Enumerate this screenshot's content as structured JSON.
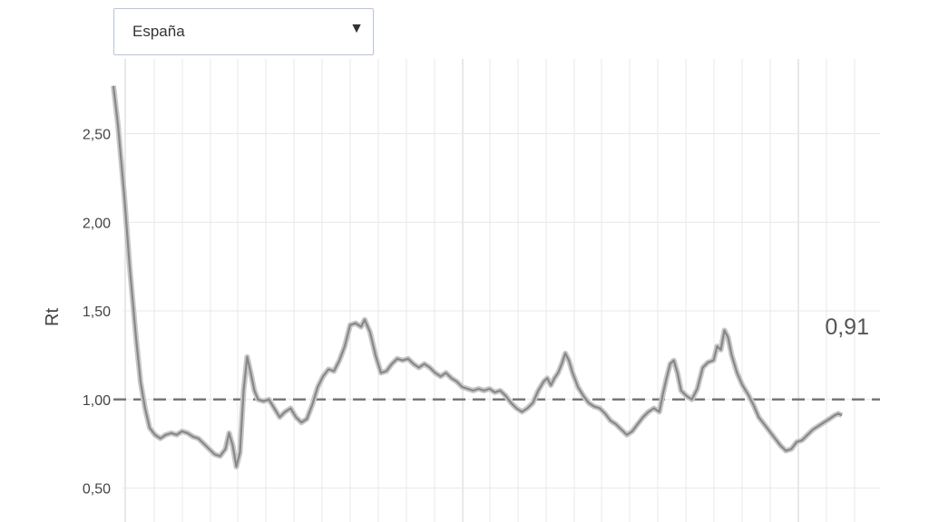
{
  "selector": {
    "selected": "España",
    "arrow": "▼",
    "icon": "triangle-down-icon"
  },
  "chart_data": {
    "type": "line",
    "ylabel": "Rt",
    "ylim": [
      0.35,
      2.8
    ],
    "xlim": [
      0,
      1000
    ],
    "yticks": [
      0.5,
      1.0,
      1.5,
      2.0,
      2.5
    ],
    "ytick_labels": [
      "0,50",
      "1,00",
      "1,50",
      "2,00",
      "2,50"
    ],
    "grid": true,
    "reference_line": {
      "y": 1.0,
      "style": "dashed"
    },
    "end_label": "0,91",
    "colors": {
      "line": "#888888",
      "band": "#c8c8c8",
      "grid": "#e8e8e8",
      "reference": "#777777"
    },
    "series": [
      {
        "values": [
          [
            0,
            2.77
          ],
          [
            5,
            2.55
          ],
          [
            12,
            2.15
          ],
          [
            18,
            1.75
          ],
          [
            25,
            1.35
          ],
          [
            30,
            1.1
          ],
          [
            35,
            0.95
          ],
          [
            40,
            0.84
          ],
          [
            46,
            0.8
          ],
          [
            52,
            0.78
          ],
          [
            58,
            0.8
          ],
          [
            64,
            0.81
          ],
          [
            70,
            0.8
          ],
          [
            76,
            0.82
          ],
          [
            82,
            0.81
          ],
          [
            88,
            0.79
          ],
          [
            94,
            0.78
          ],
          [
            100,
            0.75
          ],
          [
            106,
            0.72
          ],
          [
            112,
            0.69
          ],
          [
            118,
            0.68
          ],
          [
            124,
            0.72
          ],
          [
            128,
            0.81
          ],
          [
            132,
            0.74
          ],
          [
            136,
            0.62
          ],
          [
            140,
            0.7
          ],
          [
            144,
            1.05
          ],
          [
            148,
            1.24
          ],
          [
            152,
            1.15
          ],
          [
            156,
            1.05
          ],
          [
            160,
            1.0
          ],
          [
            166,
            0.99
          ],
          [
            172,
            1.0
          ],
          [
            178,
            0.95
          ],
          [
            184,
            0.9
          ],
          [
            190,
            0.93
          ],
          [
            196,
            0.95
          ],
          [
            202,
            0.9
          ],
          [
            208,
            0.87
          ],
          [
            214,
            0.89
          ],
          [
            220,
            0.97
          ],
          [
            226,
            1.07
          ],
          [
            232,
            1.13
          ],
          [
            238,
            1.17
          ],
          [
            244,
            1.16
          ],
          [
            250,
            1.22
          ],
          [
            256,
            1.3
          ],
          [
            262,
            1.42
          ],
          [
            268,
            1.43
          ],
          [
            274,
            1.41
          ],
          [
            278,
            1.45
          ],
          [
            284,
            1.38
          ],
          [
            290,
            1.25
          ],
          [
            296,
            1.15
          ],
          [
            302,
            1.16
          ],
          [
            308,
            1.2
          ],
          [
            314,
            1.23
          ],
          [
            320,
            1.22
          ],
          [
            326,
            1.23
          ],
          [
            332,
            1.2
          ],
          [
            338,
            1.18
          ],
          [
            344,
            1.2
          ],
          [
            350,
            1.18
          ],
          [
            356,
            1.15
          ],
          [
            362,
            1.13
          ],
          [
            368,
            1.15
          ],
          [
            374,
            1.12
          ],
          [
            380,
            1.1
          ],
          [
            386,
            1.07
          ],
          [
            392,
            1.06
          ],
          [
            398,
            1.05
          ],
          [
            404,
            1.06
          ],
          [
            410,
            1.05
          ],
          [
            416,
            1.06
          ],
          [
            422,
            1.04
          ],
          [
            428,
            1.05
          ],
          [
            434,
            1.02
          ],
          [
            440,
            0.98
          ],
          [
            446,
            0.95
          ],
          [
            452,
            0.93
          ],
          [
            458,
            0.95
          ],
          [
            464,
            0.98
          ],
          [
            470,
            1.05
          ],
          [
            476,
            1.1
          ],
          [
            480,
            1.12
          ],
          [
            484,
            1.08
          ],
          [
            488,
            1.12
          ],
          [
            492,
            1.15
          ],
          [
            496,
            1.2
          ],
          [
            500,
            1.26
          ],
          [
            504,
            1.22
          ],
          [
            508,
            1.15
          ],
          [
            514,
            1.07
          ],
          [
            520,
            1.02
          ],
          [
            526,
            0.98
          ],
          [
            532,
            0.96
          ],
          [
            538,
            0.95
          ],
          [
            544,
            0.92
          ],
          [
            550,
            0.88
          ],
          [
            556,
            0.86
          ],
          [
            562,
            0.83
          ],
          [
            568,
            0.8
          ],
          [
            574,
            0.82
          ],
          [
            580,
            0.86
          ],
          [
            586,
            0.9
          ],
          [
            592,
            0.93
          ],
          [
            598,
            0.95
          ],
          [
            604,
            0.93
          ],
          [
            608,
            1.03
          ],
          [
            612,
            1.12
          ],
          [
            616,
            1.2
          ],
          [
            620,
            1.22
          ],
          [
            624,
            1.15
          ],
          [
            628,
            1.05
          ],
          [
            634,
            1.02
          ],
          [
            640,
            1.0
          ],
          [
            646,
            1.06
          ],
          [
            652,
            1.18
          ],
          [
            658,
            1.21
          ],
          [
            664,
            1.22
          ],
          [
            668,
            1.3
          ],
          [
            672,
            1.28
          ],
          [
            676,
            1.39
          ],
          [
            680,
            1.35
          ],
          [
            684,
            1.25
          ],
          [
            690,
            1.15
          ],
          [
            696,
            1.08
          ],
          [
            702,
            1.03
          ],
          [
            708,
            0.97
          ],
          [
            714,
            0.9
          ],
          [
            720,
            0.86
          ],
          [
            726,
            0.82
          ],
          [
            732,
            0.78
          ],
          [
            738,
            0.74
          ],
          [
            744,
            0.71
          ],
          [
            750,
            0.72
          ],
          [
            756,
            0.76
          ],
          [
            762,
            0.77
          ],
          [
            768,
            0.8
          ],
          [
            774,
            0.83
          ],
          [
            780,
            0.85
          ],
          [
            786,
            0.87
          ],
          [
            792,
            0.89
          ],
          [
            798,
            0.91
          ],
          [
            802,
            0.92
          ],
          [
            806,
            0.91
          ]
        ]
      }
    ]
  }
}
